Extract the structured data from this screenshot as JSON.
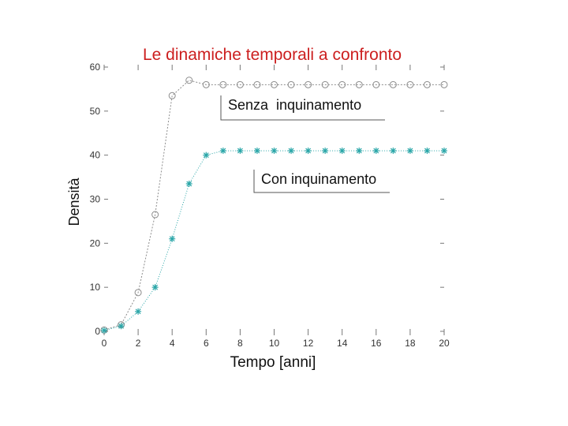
{
  "chart_data": {
    "type": "line",
    "title": "Le dinamiche temporali a confronto",
    "xlabel": "Tempo [anni]",
    "ylabel": "Densità",
    "xlim": [
      0,
      20
    ],
    "ylim": [
      0,
      60
    ],
    "xticks": [
      0,
      2,
      4,
      6,
      8,
      10,
      12,
      14,
      16,
      18,
      20
    ],
    "yticks": [
      0,
      10,
      20,
      30,
      40,
      50,
      60
    ],
    "grid": false,
    "series": [
      {
        "name": "Senza inquinamento",
        "marker": "circle",
        "color": "#8c8c8c",
        "x": [
          0,
          1,
          2,
          3,
          4,
          5,
          6,
          7,
          8,
          9,
          10,
          11,
          12,
          13,
          14,
          15,
          16,
          17,
          18,
          19,
          20
        ],
        "y": [
          0.3,
          1.5,
          8.8,
          26.5,
          53.5,
          57,
          56,
          56,
          56,
          56,
          56,
          56,
          56,
          56,
          56,
          56,
          56,
          56,
          56,
          56,
          56
        ]
      },
      {
        "name": "Con inquinamento",
        "marker": "star",
        "color": "#2aa6a8",
        "x": [
          0,
          1,
          2,
          3,
          4,
          5,
          6,
          7,
          8,
          9,
          10,
          11,
          12,
          13,
          14,
          15,
          16,
          17,
          18,
          19,
          20
        ],
        "y": [
          0.2,
          1.2,
          4.5,
          10,
          21,
          33.5,
          40,
          41,
          41,
          41,
          41,
          41,
          41,
          41,
          41,
          41,
          41,
          41,
          41,
          41,
          41
        ]
      }
    ],
    "annotations": [
      {
        "text": "Senza  inquinamento",
        "target_series": 0
      },
      {
        "text": "Con inquinamento",
        "target_series": 1
      }
    ]
  }
}
